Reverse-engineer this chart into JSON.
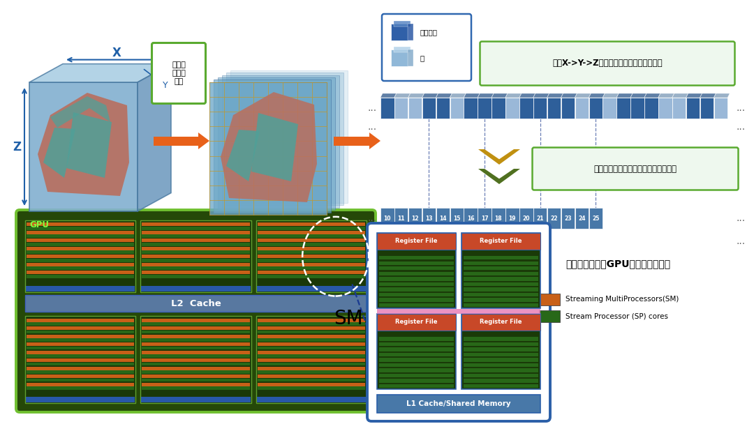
{
  "bg_color": "#ffffff",
  "label_3d_box": "三维组\n织结构\n划分",
  "label_traverse": "沿着X->Y->Z方向遍历展开，标记有效细胞",
  "label_map": "将有效细胞的三维空间位置映射到一维",
  "label_gpu_sim": "有效细胞分配在GPU上进行模拟计算",
  "label_valid_cell": "有效细胞",
  "label_empty_cell": "空",
  "label_gpu": "GPU",
  "label_l2": "L2  Cache",
  "label_sm": "SM",
  "label_sm1": "Streaming MultiProcessors(SM)",
  "label_sp": "Stream Processor (SP) cores",
  "label_reg": "Register File",
  "label_l1": "L1 Cache/Shared Memory",
  "numbers": [
    10,
    11,
    12,
    13,
    14,
    15,
    16,
    17,
    18,
    19,
    20,
    21,
    22,
    23,
    24,
    25
  ],
  "arrow_color": "#E8611A",
  "box_outline_color": "#2B5FA8",
  "green_outline": "#5AAA30",
  "gpu_bg": "#2A5C0A",
  "sm_block_orange": "#D06818",
  "sm_block_green": "#2A5A0A",
  "sm_blue_strip": "#3060A0",
  "l2_color": "#6080A8",
  "cell_blue_dark": "#2E5F9A",
  "cell_blue_light": "#9AB8D8",
  "dashed_line_color": "#1A3A90",
  "chevron_gold": "#C09010",
  "chevron_green": "#507020",
  "numbered_cell_color": "#4878A8",
  "x_label": "X",
  "z_label": "Z",
  "y_label": "Y"
}
